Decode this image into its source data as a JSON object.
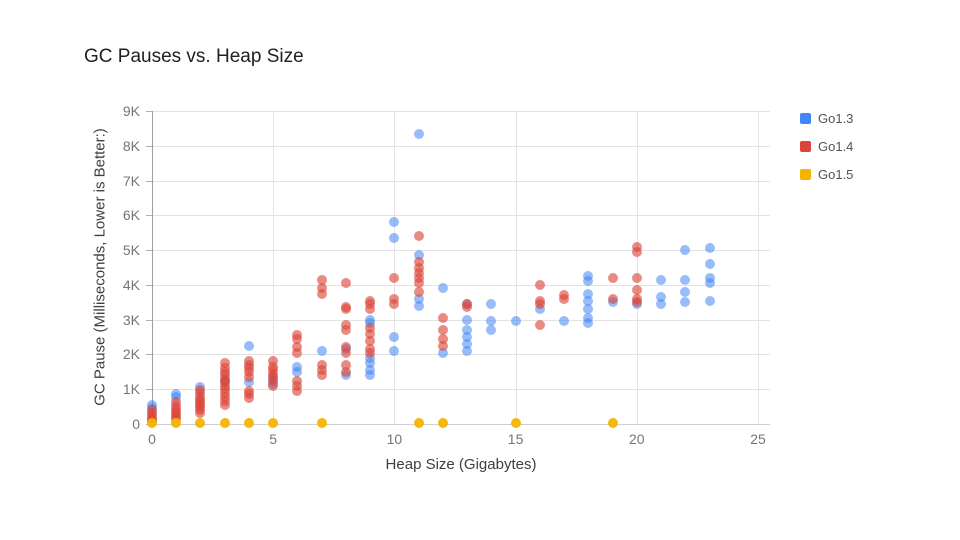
{
  "title": "GC Pauses vs. Heap Size",
  "legend": {
    "position": "right",
    "items": [
      {
        "label": "Go1.3",
        "color": "#4285F4"
      },
      {
        "label": "Go1.4",
        "color": "#DB4437"
      },
      {
        "label": "Go1.5",
        "color": "#F4B400"
      }
    ]
  },
  "chart_data": {
    "type": "scatter",
    "title": "GC Pauses vs. Heap Size",
    "xlabel": "Heap Size (Gigabytes)",
    "ylabel": "GC Pause (Milliseconds, Lower is Better:)",
    "xlim": [
      0,
      25
    ],
    "ylim": [
      0,
      9000
    ],
    "x_ticks": [
      0,
      5,
      10,
      15,
      20,
      25
    ],
    "x_tick_labels": [
      "0",
      "5",
      "10",
      "15",
      "20",
      "25"
    ],
    "y_ticks": [
      0,
      1000,
      2000,
      3000,
      4000,
      5000,
      6000,
      7000,
      8000,
      9000
    ],
    "y_tick_labels": [
      "0",
      "1K",
      "2K",
      "3K",
      "4K",
      "5K",
      "6K",
      "7K",
      "8K",
      "9K"
    ],
    "grid": true,
    "legend_position": "right",
    "marker_size_px": 10,
    "series": [
      {
        "name": "Go1.3",
        "color": "#4285F4",
        "opacity": 0.55,
        "points": [
          [
            0,
            550
          ],
          [
            0,
            470
          ],
          [
            1,
            850
          ],
          [
            1,
            780
          ],
          [
            2,
            1050
          ],
          [
            3,
            1250
          ],
          [
            4,
            2250
          ],
          [
            4,
            1200
          ],
          [
            5,
            1300
          ],
          [
            5,
            1150
          ],
          [
            6,
            1650
          ],
          [
            6,
            1500
          ],
          [
            7,
            2100
          ],
          [
            8,
            2150
          ],
          [
            8,
            1400
          ],
          [
            9,
            3000
          ],
          [
            9,
            2900
          ],
          [
            9,
            1900
          ],
          [
            9,
            1750
          ],
          [
            9,
            1550
          ],
          [
            9,
            1400
          ],
          [
            10,
            5800
          ],
          [
            10,
            5350
          ],
          [
            10,
            2500
          ],
          [
            10,
            2100
          ],
          [
            11,
            8350
          ],
          [
            11,
            4850
          ],
          [
            11,
            3600
          ],
          [
            11,
            3400
          ],
          [
            12,
            3900
          ],
          [
            12,
            2050
          ],
          [
            13,
            3450
          ],
          [
            13,
            3000
          ],
          [
            13,
            2700
          ],
          [
            13,
            2500
          ],
          [
            13,
            2300
          ],
          [
            13,
            2100
          ],
          [
            14,
            3450
          ],
          [
            14,
            2950
          ],
          [
            14,
            2700
          ],
          [
            15,
            2950
          ],
          [
            16,
            3300
          ],
          [
            17,
            2950
          ],
          [
            18,
            4250
          ],
          [
            18,
            4100
          ],
          [
            18,
            3750
          ],
          [
            18,
            3550
          ],
          [
            18,
            3300
          ],
          [
            18,
            3050
          ],
          [
            18,
            2900
          ],
          [
            19,
            3500
          ],
          [
            20,
            3450
          ],
          [
            21,
            4150
          ],
          [
            21,
            3650
          ],
          [
            21,
            3450
          ],
          [
            22,
            5000
          ],
          [
            22,
            4150
          ],
          [
            22,
            3800
          ],
          [
            22,
            3500
          ],
          [
            23,
            5050
          ],
          [
            23,
            4600
          ],
          [
            23,
            4200
          ],
          [
            23,
            4050
          ],
          [
            23,
            3550
          ]
        ]
      },
      {
        "name": "Go1.4",
        "color": "#DB4437",
        "opacity": 0.62,
        "points": [
          [
            0,
            400
          ],
          [
            0,
            320
          ],
          [
            0,
            250
          ],
          [
            0,
            180
          ],
          [
            0,
            120
          ],
          [
            0,
            80
          ],
          [
            1,
            620
          ],
          [
            1,
            520
          ],
          [
            1,
            430
          ],
          [
            1,
            350
          ],
          [
            1,
            280
          ],
          [
            1,
            200
          ],
          [
            1,
            150
          ],
          [
            2,
            980
          ],
          [
            2,
            880
          ],
          [
            2,
            780
          ],
          [
            2,
            700
          ],
          [
            2,
            620
          ],
          [
            2,
            550
          ],
          [
            2,
            480
          ],
          [
            2,
            400
          ],
          [
            2,
            330
          ],
          [
            3,
            1750
          ],
          [
            3,
            1600
          ],
          [
            3,
            1500
          ],
          [
            3,
            1400
          ],
          [
            3,
            1300
          ],
          [
            3,
            1200
          ],
          [
            3,
            1100
          ],
          [
            3,
            1000
          ],
          [
            3,
            900
          ],
          [
            3,
            780
          ],
          [
            3,
            650
          ],
          [
            3,
            550
          ],
          [
            4,
            1800
          ],
          [
            4,
            1700
          ],
          [
            4,
            1600
          ],
          [
            4,
            1500
          ],
          [
            4,
            1350
          ],
          [
            4,
            950
          ],
          [
            4,
            850
          ],
          [
            4,
            750
          ],
          [
            5,
            1800
          ],
          [
            5,
            1650
          ],
          [
            5,
            1550
          ],
          [
            5,
            1450
          ],
          [
            5,
            1350
          ],
          [
            5,
            1250
          ],
          [
            5,
            1100
          ],
          [
            6,
            2550
          ],
          [
            6,
            2450
          ],
          [
            6,
            2200
          ],
          [
            6,
            2050
          ],
          [
            6,
            1250
          ],
          [
            6,
            1100
          ],
          [
            6,
            950
          ],
          [
            7,
            4150
          ],
          [
            7,
            3900
          ],
          [
            7,
            3750
          ],
          [
            7,
            1700
          ],
          [
            7,
            1550
          ],
          [
            7,
            1400
          ],
          [
            8,
            4050
          ],
          [
            8,
            3350
          ],
          [
            8,
            3300
          ],
          [
            8,
            2850
          ],
          [
            8,
            2700
          ],
          [
            8,
            2200
          ],
          [
            8,
            2050
          ],
          [
            8,
            1700
          ],
          [
            8,
            1500
          ],
          [
            9,
            3550
          ],
          [
            9,
            3450
          ],
          [
            9,
            3300
          ],
          [
            9,
            2750
          ],
          [
            9,
            2600
          ],
          [
            9,
            2400
          ],
          [
            9,
            2150
          ],
          [
            9,
            2050
          ],
          [
            10,
            4200
          ],
          [
            10,
            3600
          ],
          [
            10,
            3450
          ],
          [
            11,
            5400
          ],
          [
            11,
            4650
          ],
          [
            11,
            4500
          ],
          [
            11,
            4350
          ],
          [
            11,
            4200
          ],
          [
            11,
            4050
          ],
          [
            11,
            3800
          ],
          [
            12,
            3050
          ],
          [
            12,
            2700
          ],
          [
            12,
            2450
          ],
          [
            12,
            2250
          ],
          [
            13,
            3450
          ],
          [
            13,
            3350
          ],
          [
            16,
            4000
          ],
          [
            16,
            3550
          ],
          [
            16,
            3450
          ],
          [
            16,
            2850
          ],
          [
            17,
            3700
          ],
          [
            17,
            3600
          ],
          [
            19,
            4200
          ],
          [
            19,
            3600
          ],
          [
            20,
            5100
          ],
          [
            20,
            4950
          ],
          [
            20,
            4200
          ],
          [
            20,
            3850
          ],
          [
            20,
            3600
          ],
          [
            20,
            3500
          ]
        ]
      },
      {
        "name": "Go1.5",
        "color": "#F4B400",
        "opacity": 0.95,
        "points": [
          [
            0,
            20
          ],
          [
            1,
            20
          ],
          [
            2,
            20
          ],
          [
            3,
            20
          ],
          [
            4,
            20
          ],
          [
            5,
            20
          ],
          [
            7,
            20
          ],
          [
            11,
            20
          ],
          [
            12,
            20
          ],
          [
            15,
            20
          ],
          [
            19,
            20
          ]
        ]
      }
    ]
  }
}
